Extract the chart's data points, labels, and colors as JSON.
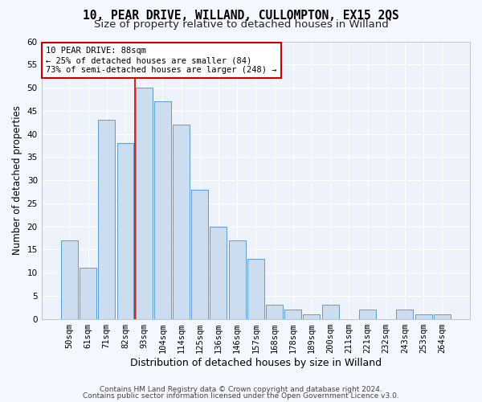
{
  "title1": "10, PEAR DRIVE, WILLAND, CULLOMPTON, EX15 2QS",
  "title2": "Size of property relative to detached houses in Willand",
  "xlabel": "Distribution of detached houses by size in Willand",
  "ylabel": "Number of detached properties",
  "categories": [
    "50sqm",
    "61sqm",
    "71sqm",
    "82sqm",
    "93sqm",
    "104sqm",
    "114sqm",
    "125sqm",
    "136sqm",
    "146sqm",
    "157sqm",
    "168sqm",
    "178sqm",
    "189sqm",
    "200sqm",
    "211sqm",
    "221sqm",
    "232sqm",
    "243sqm",
    "253sqm",
    "264sqm"
  ],
  "values": [
    17,
    11,
    43,
    38,
    50,
    47,
    42,
    28,
    20,
    17,
    13,
    3,
    2,
    1,
    3,
    0,
    2,
    0,
    2,
    1,
    1
  ],
  "bar_color": "#ccddf0",
  "bar_edge_color": "#5b9bd5",
  "vline_x": 3.5,
  "vline_color": "#cc0000",
  "annotation_text": "10 PEAR DRIVE: 88sqm\n← 25% of detached houses are smaller (84)\n73% of semi-detached houses are larger (248) →",
  "annotation_box_color": "#ffffff",
  "annotation_box_edge": "#cc0000",
  "ylim": [
    0,
    60
  ],
  "yticks": [
    0,
    5,
    10,
    15,
    20,
    25,
    30,
    35,
    40,
    45,
    50,
    55,
    60
  ],
  "footer1": "Contains HM Land Registry data © Crown copyright and database right 2024.",
  "footer2": "Contains public sector information licensed under the Open Government Licence v3.0.",
  "plot_bg_color": "#eef2fa",
  "fig_bg_color": "#f5f7ff",
  "grid_color": "#ffffff",
  "title1_fontsize": 10.5,
  "title2_fontsize": 9.5,
  "xlabel_fontsize": 9,
  "ylabel_fontsize": 8.5,
  "tick_fontsize": 7.5,
  "annot_fontsize": 7.5,
  "footer_fontsize": 6.5
}
